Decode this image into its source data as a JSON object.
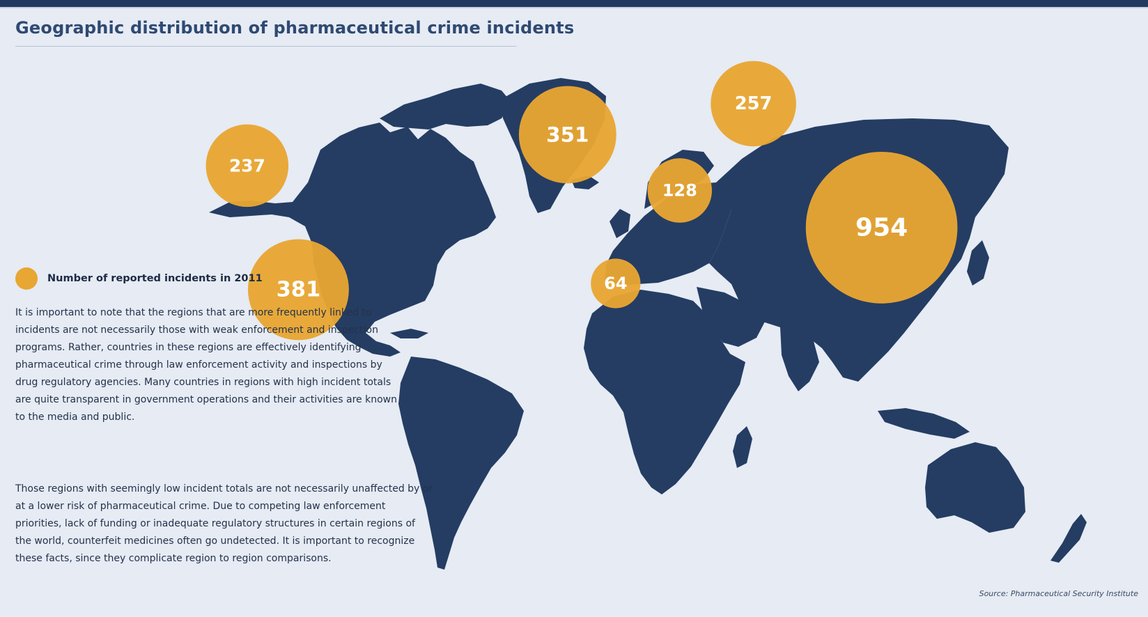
{
  "title": "Geographic distribution of pharmaceutical crime incidents",
  "legend": {
    "label": "Number of reported incidents in 2011"
  },
  "paragraphs": [
    "It is important to note that the regions that are more frequently linked to incidents are not necessarily those with weak enforcement and inspection programs. Rather, countries in these regions are effectively identifying pharmaceutical crime through law enforcement activity and inspections by drug regulatory agencies. Many countries in regions with high incident totals are quite transparent in government operations and their activities are known to the media and public.",
    "Those regions with seemingly low incident totals are not necessarily unaffected by or at a lower risk of pharmaceutical crime. Due to competing law enforcement priorities, lack of funding or inadequate regulatory structures in certain regions of the world, counterfeit medicines often go undetected. It is important to recognize these facts, since they complicate region to region comparisons."
  ],
  "source": "Source: Pharmaceutical Security Institute",
  "colors": {
    "land": "#253d63",
    "bubble": "#e8a632",
    "background": "#e6ebf4",
    "title": "#2f4a72"
  },
  "regions": [
    {
      "id": "north-america",
      "value": 237,
      "lon": -92,
      "lat": 38
    },
    {
      "id": "latin-america",
      "value": 381,
      "lon": -76,
      "lat": -2
    },
    {
      "id": "europe",
      "value": 351,
      "lon": 8,
      "lat": 48
    },
    {
      "id": "eurasia",
      "value": 257,
      "lon": 66,
      "lat": 58
    },
    {
      "id": "near-east",
      "value": 128,
      "lon": 43,
      "lat": 30
    },
    {
      "id": "africa",
      "value": 64,
      "lon": 23,
      "lat": 0
    },
    {
      "id": "asia",
      "value": 954,
      "lon": 106,
      "lat": 18
    }
  ]
}
